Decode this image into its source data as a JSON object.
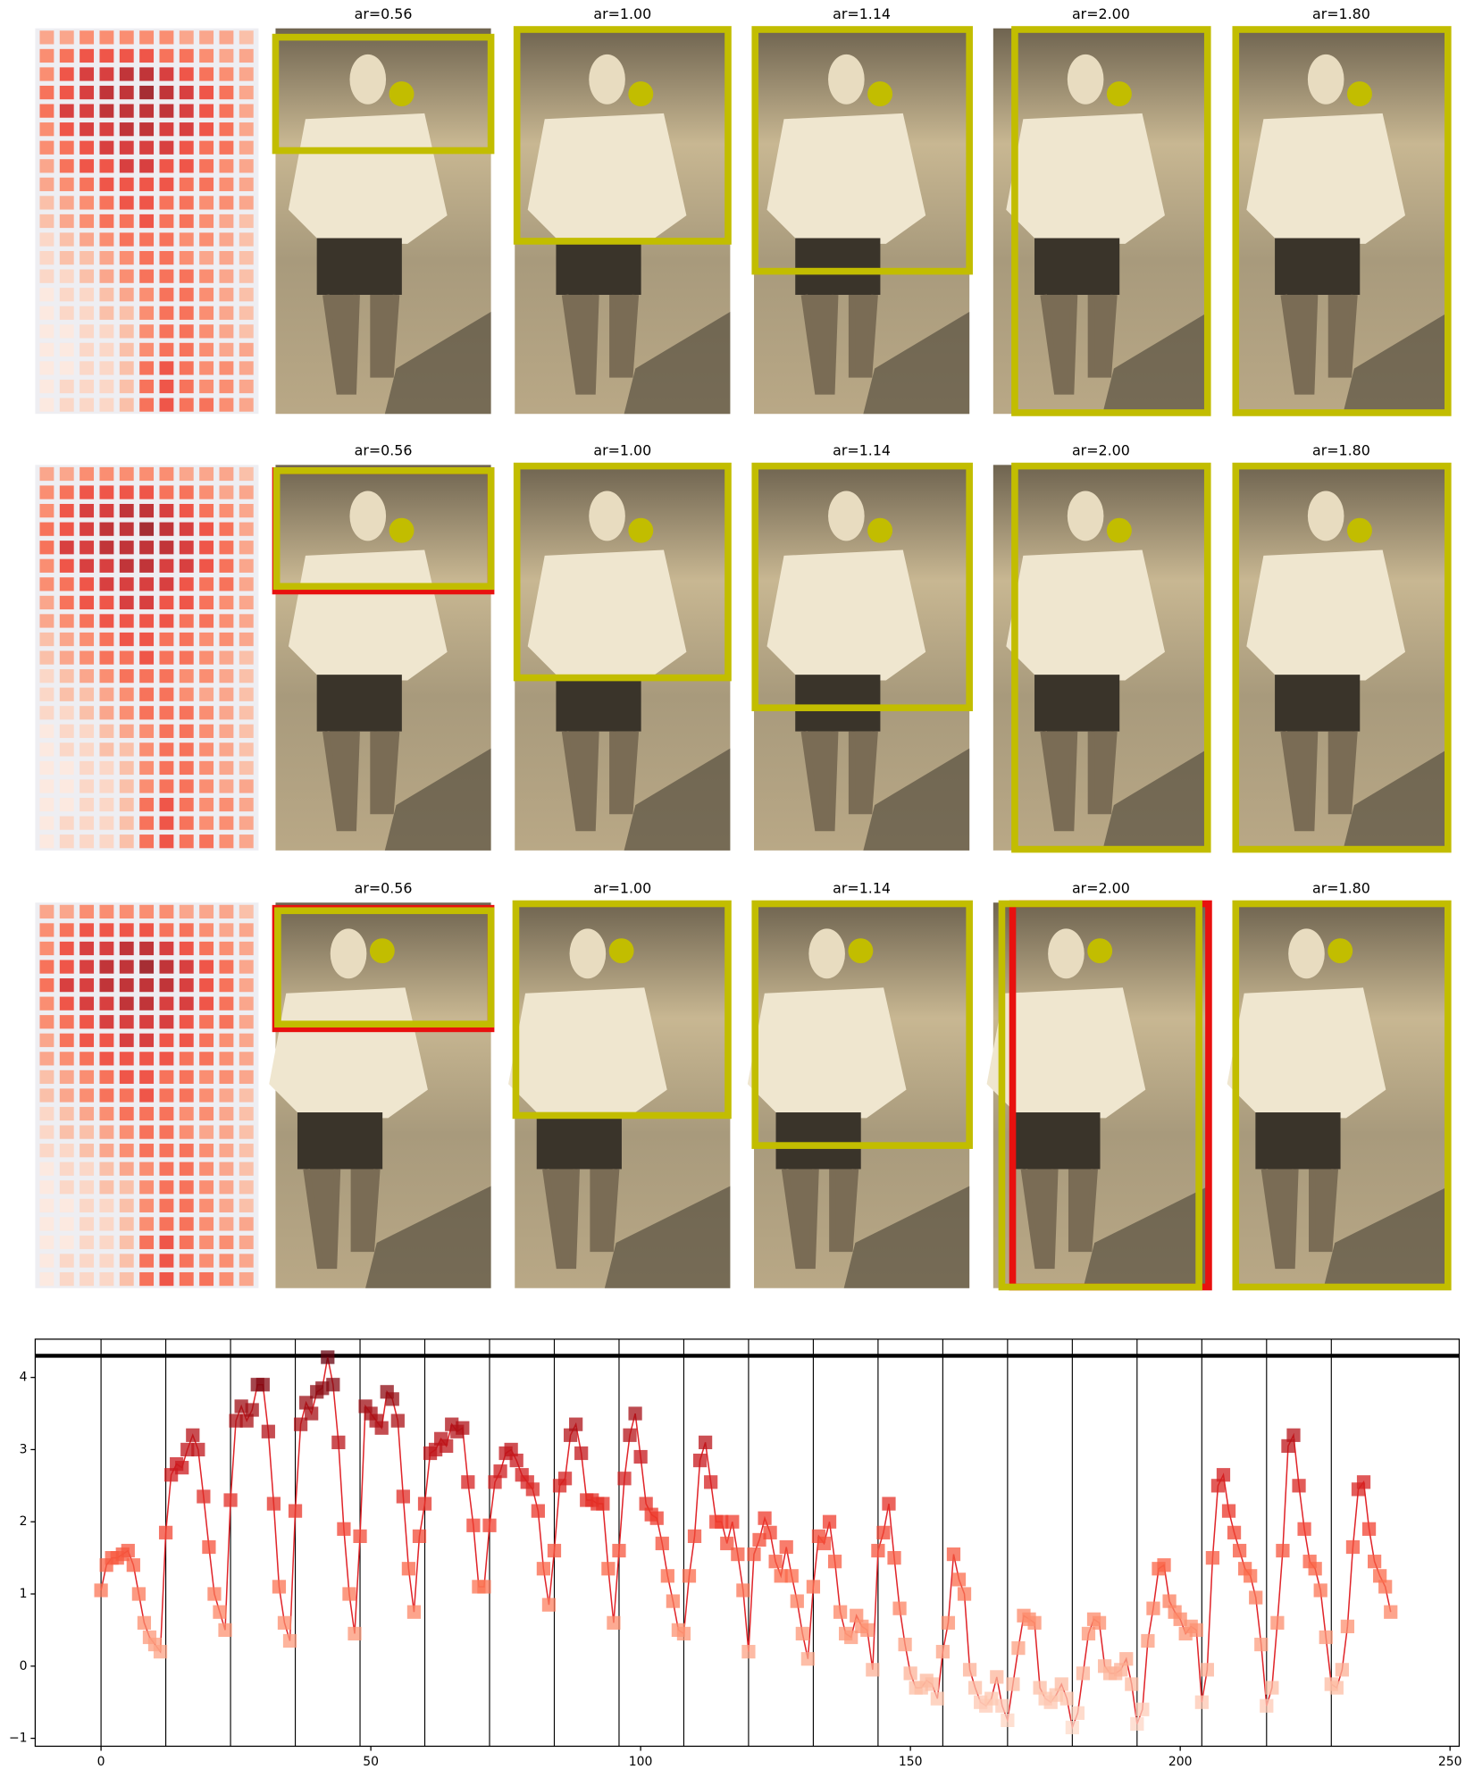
{
  "panel_titles": [
    [
      "ar=0.56",
      "ar=1.00",
      "ar=1.14",
      "ar=2.00",
      "ar=1.80"
    ],
    [
      "ar=0.56",
      "ar=1.00",
      "ar=1.14",
      "ar=2.00",
      "ar=1.80"
    ],
    [
      "ar=0.56",
      "ar=1.00",
      "ar=1.14",
      "ar=2.00",
      "ar=1.80"
    ]
  ],
  "heatmap": {
    "colormap": "Reds",
    "vmax": 9,
    "values": [
      [
        3,
        3,
        4,
        4,
        4,
        4,
        4,
        3,
        3,
        3,
        2
      ],
      [
        4,
        5,
        6,
        6,
        6,
        6,
        5,
        5,
        4,
        3,
        3
      ],
      [
        4,
        6,
        7,
        7,
        8,
        8,
        7,
        6,
        5,
        4,
        3
      ],
      [
        5,
        6,
        7,
        8,
        8,
        9,
        8,
        7,
        6,
        5,
        3
      ],
      [
        5,
        7,
        7,
        8,
        8,
        8,
        8,
        7,
        6,
        5,
        3
      ],
      [
        4,
        6,
        7,
        7,
        8,
        8,
        7,
        7,
        6,
        5,
        3
      ],
      [
        4,
        5,
        6,
        7,
        7,
        7,
        7,
        6,
        5,
        5,
        3
      ],
      [
        3,
        5,
        6,
        6,
        7,
        7,
        6,
        6,
        5,
        4,
        3
      ],
      [
        3,
        4,
        5,
        6,
        6,
        6,
        6,
        5,
        5,
        4,
        3
      ],
      [
        2,
        3,
        4,
        5,
        6,
        6,
        5,
        5,
        4,
        4,
        3
      ],
      [
        2,
        3,
        4,
        5,
        5,
        6,
        5,
        5,
        4,
        3,
        2
      ],
      [
        1,
        2,
        3,
        4,
        5,
        5,
        5,
        4,
        4,
        3,
        2
      ],
      [
        1,
        2,
        2,
        3,
        4,
        5,
        5,
        4,
        3,
        3,
        2
      ],
      [
        1,
        1,
        2,
        3,
        4,
        5,
        5,
        5,
        4,
        3,
        2
      ],
      [
        0,
        1,
        1,
        2,
        3,
        4,
        5,
        5,
        4,
        3,
        2
      ],
      [
        0,
        1,
        1,
        2,
        2,
        4,
        5,
        5,
        4,
        3,
        2
      ],
      [
        0,
        0,
        1,
        1,
        2,
        4,
        5,
        5,
        4,
        3,
        2
      ],
      [
        0,
        0,
        1,
        1,
        2,
        4,
        5,
        5,
        4,
        3,
        3
      ],
      [
        0,
        0,
        1,
        1,
        2,
        5,
        6,
        5,
        4,
        4,
        3
      ],
      [
        0,
        1,
        1,
        1,
        2,
        5,
        6,
        5,
        4,
        4,
        3
      ],
      [
        0,
        1,
        1,
        1,
        2,
        5,
        6,
        5,
        5,
        4,
        3
      ]
    ]
  },
  "chart_data": {
    "type": "line",
    "color": "#e0252a",
    "colormap": "Reds",
    "xlim": [
      -12.2,
      251.7
    ],
    "ylim": [
      -1.11,
      4.53
    ],
    "xticks": [
      0,
      50,
      100,
      150,
      200,
      250
    ],
    "yticks": [
      {
        "value": -1,
        "label": "−1"
      },
      0,
      1,
      2,
      3,
      4
    ],
    "hline": 4.3,
    "vlines": [
      0,
      12,
      24,
      36,
      48,
      60,
      72,
      84,
      96,
      108,
      120,
      132,
      144,
      156,
      168,
      180,
      192,
      204,
      216,
      228
    ],
    "x": [
      0,
      1,
      2,
      3,
      4,
      5,
      6,
      7,
      8,
      9,
      10,
      11,
      12,
      13,
      14,
      15,
      16,
      17,
      18,
      19,
      20,
      21,
      22,
      23,
      24,
      25,
      26,
      27,
      28,
      29,
      30,
      31,
      32,
      33,
      34,
      35,
      36,
      37,
      38,
      39,
      40,
      41,
      42,
      43,
      44,
      45,
      46,
      47,
      48,
      49,
      50,
      51,
      52,
      53,
      54,
      55,
      56,
      57,
      58,
      59,
      60,
      61,
      62,
      63,
      64,
      65,
      66,
      67,
      68,
      69,
      70,
      71,
      72,
      73,
      74,
      75,
      76,
      77,
      78,
      79,
      80,
      81,
      82,
      83,
      84,
      85,
      86,
      87,
      88,
      89,
      90,
      91,
      92,
      93,
      94,
      95,
      96,
      97,
      98,
      99,
      100,
      101,
      102,
      103,
      104,
      105,
      106,
      107,
      108,
      109,
      110,
      111,
      112,
      113,
      114,
      115,
      116,
      117,
      118,
      119,
      120,
      121,
      122,
      123,
      124,
      125,
      126,
      127,
      128,
      129,
      130,
      131,
      132,
      133,
      134,
      135,
      136,
      137,
      138,
      139,
      140,
      141,
      142,
      143,
      144,
      145,
      146,
      147,
      148,
      149,
      150,
      151,
      152,
      153,
      154,
      155,
      156,
      157,
      158,
      159,
      160,
      161,
      162,
      163,
      164,
      165,
      166,
      167,
      168,
      169,
      170,
      171,
      172,
      173,
      174,
      175,
      176,
      177,
      178,
      179,
      180,
      181,
      182,
      183,
      184,
      185,
      186,
      187,
      188,
      189,
      190,
      191,
      192,
      193,
      194,
      195,
      196,
      197,
      198,
      199,
      200,
      201,
      202,
      203,
      204,
      205,
      206,
      207,
      208,
      209,
      210,
      211,
      212,
      213,
      214,
      215,
      216,
      217,
      218,
      219,
      220,
      221,
      222,
      223,
      224,
      225,
      226,
      227,
      228,
      229,
      230,
      231,
      232,
      233,
      234,
      235,
      236,
      237,
      238,
      239
    ],
    "values": [
      1.05,
      1.4,
      1.5,
      1.5,
      1.55,
      1.6,
      1.4,
      1.0,
      0.6,
      0.4,
      0.3,
      0.2,
      1.85,
      2.65,
      2.8,
      2.75,
      3.0,
      3.2,
      3.0,
      2.35,
      1.65,
      1.0,
      0.75,
      0.5,
      2.3,
      3.4,
      3.6,
      3.4,
      3.55,
      3.9,
      3.9,
      3.25,
      2.25,
      1.1,
      0.6,
      0.35,
      2.15,
      3.35,
      3.65,
      3.5,
      3.8,
      3.85,
      4.28,
      3.9,
      3.1,
      1.9,
      1.0,
      0.45,
      1.8,
      3.6,
      3.5,
      3.4,
      3.3,
      3.8,
      3.7,
      3.4,
      2.35,
      1.35,
      0.75,
      1.8,
      2.25,
      2.95,
      3.0,
      3.15,
      3.05,
      3.35,
      3.25,
      3.3,
      2.55,
      1.95,
      1.1,
      1.1,
      1.95,
      2.55,
      2.7,
      2.95,
      3.0,
      2.85,
      2.65,
      2.55,
      2.45,
      2.15,
      1.35,
      0.85,
      1.6,
      2.5,
      2.6,
      3.2,
      3.35,
      2.95,
      2.3,
      2.3,
      2.25,
      2.25,
      1.35,
      0.6,
      1.6,
      2.6,
      3.2,
      3.5,
      2.9,
      2.25,
      2.1,
      2.05,
      1.7,
      1.25,
      0.9,
      0.5,
      0.45,
      1.25,
      1.8,
      2.85,
      3.1,
      2.55,
      2.0,
      2.0,
      1.7,
      2.0,
      1.55,
      1.05,
      0.2,
      1.55,
      1.75,
      2.05,
      1.85,
      1.45,
      1.25,
      1.65,
      1.25,
      0.9,
      0.45,
      0.1,
      1.1,
      1.8,
      1.7,
      2.0,
      1.45,
      0.75,
      0.45,
      0.4,
      0.7,
      0.55,
      0.5,
      -0.05,
      1.6,
      1.85,
      2.25,
      1.5,
      0.8,
      0.3,
      -0.1,
      -0.3,
      -0.3,
      -0.2,
      -0.25,
      -0.45,
      0.2,
      0.6,
      1.55,
      1.2,
      1.0,
      -0.05,
      -0.3,
      -0.5,
      -0.55,
      -0.45,
      -0.15,
      -0.55,
      -0.75,
      -0.25,
      0.25,
      0.7,
      0.65,
      0.6,
      -0.3,
      -0.45,
      -0.5,
      -0.4,
      -0.25,
      -0.45,
      -0.85,
      -0.65,
      -0.1,
      0.45,
      0.65,
      0.6,
      0.0,
      -0.1,
      -0.1,
      -0.05,
      0.1,
      -0.25,
      -0.8,
      -0.6,
      0.35,
      0.8,
      1.35,
      1.4,
      0.9,
      0.75,
      0.65,
      0.45,
      0.55,
      0.5,
      -0.5,
      -0.05,
      1.5,
      2.5,
      2.65,
      2.15,
      1.85,
      1.6,
      1.35,
      1.25,
      0.95,
      0.3,
      -0.55,
      -0.3,
      0.6,
      1.6,
      3.05,
      3.2,
      2.5,
      1.9,
      1.45,
      1.35,
      1.05,
      0.4,
      -0.25,
      -0.3,
      -0.05,
      0.55,
      1.65,
      2.45,
      2.55,
      1.9,
      1.45,
      1.25,
      1.1,
      0.75
    ]
  }
}
